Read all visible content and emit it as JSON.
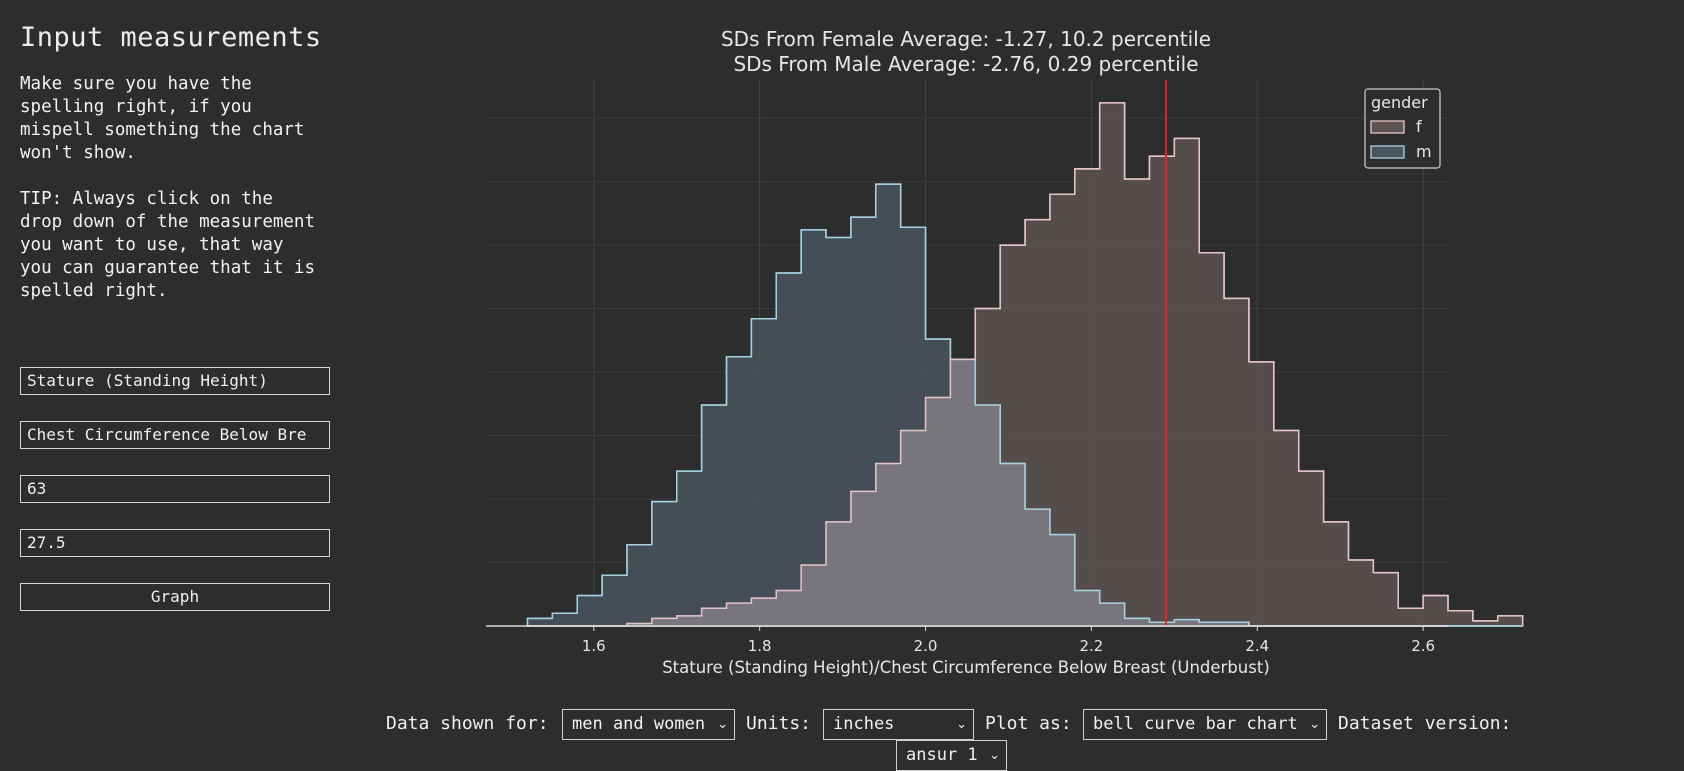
{
  "sidebar": {
    "title": "Input measurements",
    "help": "Make sure you have the\nspelling right, if you\nmispell something the chart\nwon't show.\n\nTIP: Always click on the\ndrop down of the measurement\nyou want to use, that way\nyou can guarantee that it is\nspelled right.",
    "field1": "Stature (Standing Height)",
    "field2": "Chest Circumference Below Bre",
    "field3": "63",
    "field4": "27.5",
    "graph_label": "Graph"
  },
  "controls": {
    "data_label": "Data shown for:",
    "data_value": "men and women",
    "units_label": "Units:",
    "units_value": "inches",
    "plot_label": "Plot as:",
    "plot_value": "bell curve bar chart",
    "dataset_label": "Dataset version:",
    "dataset_value": "ansur 1",
    "chevron": "⌄"
  },
  "chart_data": {
    "type": "histogram",
    "title_lines": [
      "SDs From Female Average: -1.27, 10.2 percentile",
      "SDs From Male Average: -2.76, 0.29 percentile"
    ],
    "xlabel": "Stature (Standing Height)/Chest Circumference Below Breast (Underbust)",
    "ylabel": "",
    "xlim": [
      1.47,
      2.63
    ],
    "ylim": [
      0,
      0.215
    ],
    "xticks": [
      1.6,
      1.8,
      2.0,
      2.2,
      2.4,
      2.6
    ],
    "grid": true,
    "legend": {
      "title": "gender",
      "position": "top-right"
    },
    "marker_x": 2.29,
    "marker_color": "#d62728",
    "bin_start": 1.52,
    "bin_width": 0.03,
    "series": [
      {
        "name": "f",
        "fill": "#5d5252",
        "edge": "#e7c5cd",
        "values": [
          0,
          0,
          0,
          0,
          0.001,
          0.003,
          0.004,
          0.007,
          0.009,
          0.011,
          0.014,
          0.024,
          0.041,
          0.053,
          0.064,
          0.077,
          0.09,
          0.105,
          0.125,
          0.15,
          0.16,
          0.17,
          0.18,
          0.206,
          0.176,
          0.185,
          0.192,
          0.147,
          0.129,
          0.104,
          0.077,
          0.061,
          0.041,
          0.026,
          0.021,
          0.007,
          0.012,
          0.006,
          0.002,
          0.004
        ]
      },
      {
        "name": "m",
        "fill": "#4a555e",
        "edge": "#a6d2e3",
        "values": [
          0.003,
          0.005,
          0.012,
          0.02,
          0.032,
          0.049,
          0.061,
          0.087,
          0.106,
          0.121,
          0.139,
          0.156,
          0.153,
          0.161,
          0.174,
          0.157,
          0.113,
          0.105,
          0.087,
          0.064,
          0.046,
          0.036,
          0.014,
          0.009,
          0.003,
          0.0015,
          0.0025,
          0.0015,
          0.0015,
          0,
          0,
          0,
          0,
          0,
          0,
          0,
          0,
          0,
          0,
          0
        ]
      }
    ]
  }
}
